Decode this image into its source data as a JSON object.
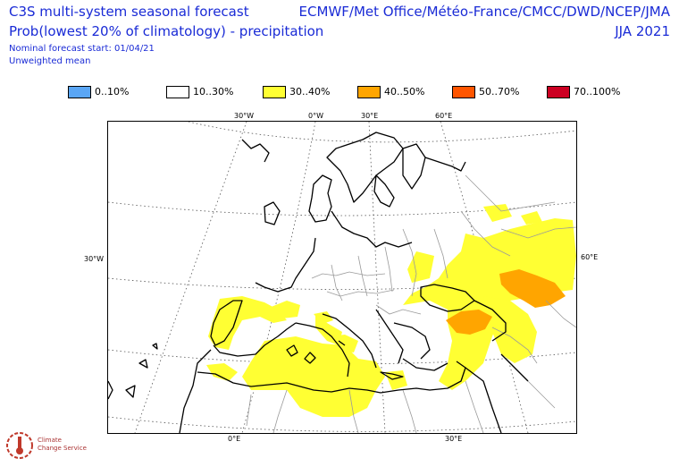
{
  "header": {
    "title_line1": "C3S multi-system seasonal forecast",
    "title_line2": "Prob(lowest 20% of climatology) - precipitation",
    "start_line": "Nominal forecast start: 01/04/21",
    "weight_line": "Unweighted mean",
    "systems": "ECMWF/Met Office/Météo-France/CMCC/DWD/NCEP/JMA",
    "season": "JJA 2021"
  },
  "legend": [
    {
      "label": "0..10%",
      "color": "#5aa6f5"
    },
    {
      "label": "10..30%",
      "color": "#ffffff"
    },
    {
      "label": "30..40%",
      "color": "#ffff33"
    },
    {
      "label": "40..50%",
      "color": "#ffa500"
    },
    {
      "label": "50..70%",
      "color": "#ff5500"
    },
    {
      "label": "70..100%",
      "color": "#cc0022"
    }
  ],
  "map": {
    "top_labels": [
      "30°W",
      "0°W",
      "30°E",
      "60°E"
    ],
    "left_label": "30°W",
    "right_label": "60°E",
    "bottom_labels": [
      "0°E",
      "30°E"
    ]
  },
  "logo": {
    "line1": "Climate",
    "line2": "Change Service"
  }
}
